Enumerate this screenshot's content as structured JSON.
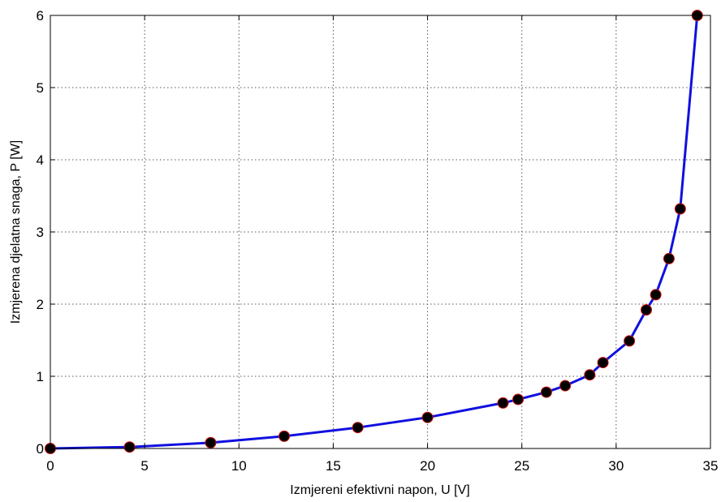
{
  "chart_data": {
    "type": "line",
    "title": "",
    "xlabel": "Izmjereni efektivni napon, U [V]",
    "ylabel": "Izmjerena djelatna snaga, P [W]",
    "xlim": [
      0,
      35
    ],
    "ylim": [
      0,
      6
    ],
    "xticks": [
      "0",
      "5",
      "10",
      "15",
      "20",
      "25",
      "30",
      "35"
    ],
    "yticks": [
      "0",
      "1",
      "2",
      "3",
      "4",
      "5",
      "6"
    ],
    "grid": true,
    "grid_style": "dotted",
    "x": [
      0.0,
      4.2,
      8.5,
      12.4,
      16.3,
      20.0,
      24.0,
      24.8,
      26.3,
      27.3,
      28.6,
      29.3,
      30.7,
      31.6,
      32.1,
      32.8,
      33.4,
      34.3
    ],
    "series": [
      {
        "values": [
          0.0,
          0.02,
          0.08,
          0.17,
          0.29,
          0.43,
          0.63,
          0.68,
          0.78,
          0.87,
          1.02,
          1.19,
          1.49,
          1.92,
          2.13,
          2.63,
          3.32,
          6.0
        ],
        "line_color": "#1010e0",
        "marker_color": "#000000",
        "marker_edge_color": "#cc1111"
      }
    ],
    "colors": {
      "axis": "#000000",
      "grid": "#555555",
      "background": "#ffffff"
    }
  }
}
